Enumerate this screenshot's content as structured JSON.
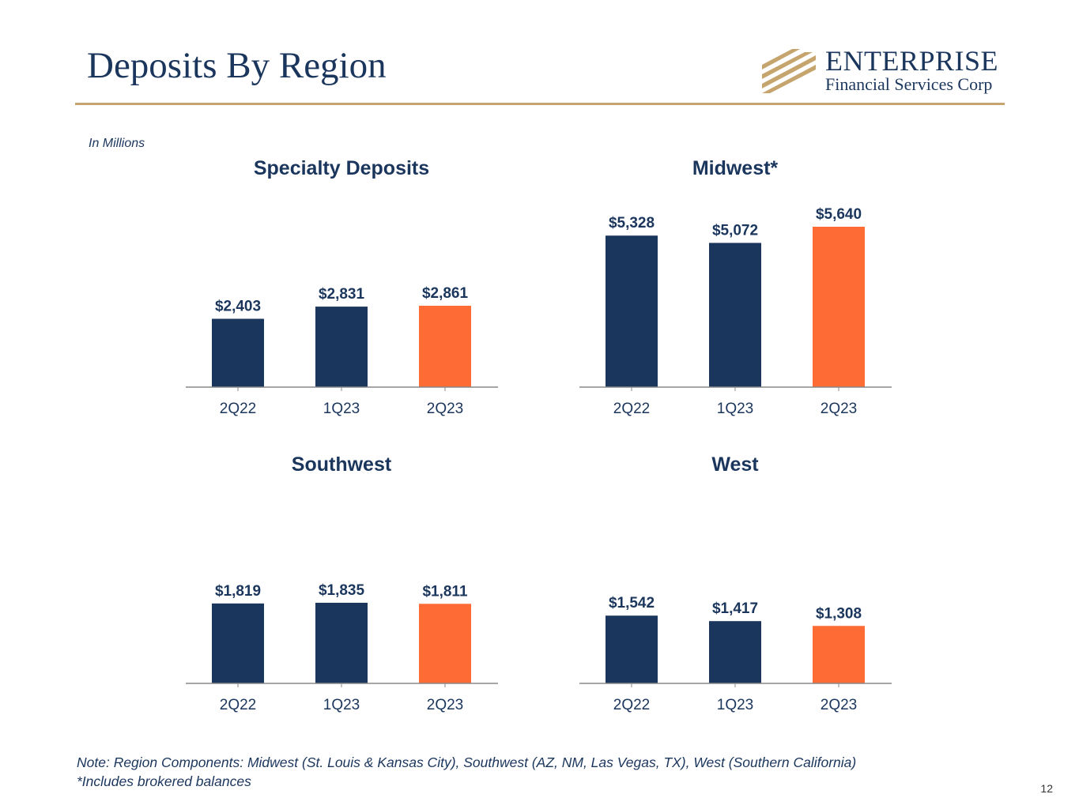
{
  "title": "Deposits By Region",
  "logo": {
    "name": "ENTERPRISE",
    "sub": "Financial Services Corp"
  },
  "units_note": "In Millions",
  "colors": {
    "navy": "#1b365d",
    "highlight": "#ff6b35",
    "gold": "#c5a46d",
    "axis": "#888888"
  },
  "chart_data": [
    {
      "type": "bar",
      "title": "Specialty Deposits",
      "categories": [
        "2Q22",
        "1Q23",
        "2Q23"
      ],
      "values": [
        2403,
        2831,
        2861
      ],
      "value_labels": [
        "$2,403",
        "$2,831",
        "$2,861"
      ],
      "highlight_index": 2,
      "ylim": [
        0,
        5640
      ]
    },
    {
      "type": "bar",
      "title": "Midwest*",
      "categories": [
        "2Q22",
        "1Q23",
        "2Q23"
      ],
      "values": [
        5328,
        5072,
        5640
      ],
      "value_labels": [
        "$5,328",
        "$5,072",
        "$5,640"
      ],
      "highlight_index": 2,
      "ylim": [
        0,
        5640
      ]
    },
    {
      "type": "bar",
      "title": "Southwest",
      "categories": [
        "2Q22",
        "1Q23",
        "2Q23"
      ],
      "values": [
        1819,
        1835,
        1811
      ],
      "value_labels": [
        "$1,819",
        "$1,835",
        "$1,811"
      ],
      "highlight_index": 2,
      "ylim": [
        0,
        3650
      ]
    },
    {
      "type": "bar",
      "title": "West",
      "categories": [
        "2Q22",
        "1Q23",
        "2Q23"
      ],
      "values": [
        1542,
        1417,
        1308
      ],
      "value_labels": [
        "$1,542",
        "$1,417",
        "$1,308"
      ],
      "highlight_index": 2,
      "ylim": [
        0,
        3650
      ]
    }
  ],
  "notes": [
    "Note: Region Components: Midwest (St. Louis & Kansas City), Southwest (AZ, NM, Las Vegas, TX), West (Southern California)",
    "*Includes brokered balances"
  ],
  "page_number": "12"
}
